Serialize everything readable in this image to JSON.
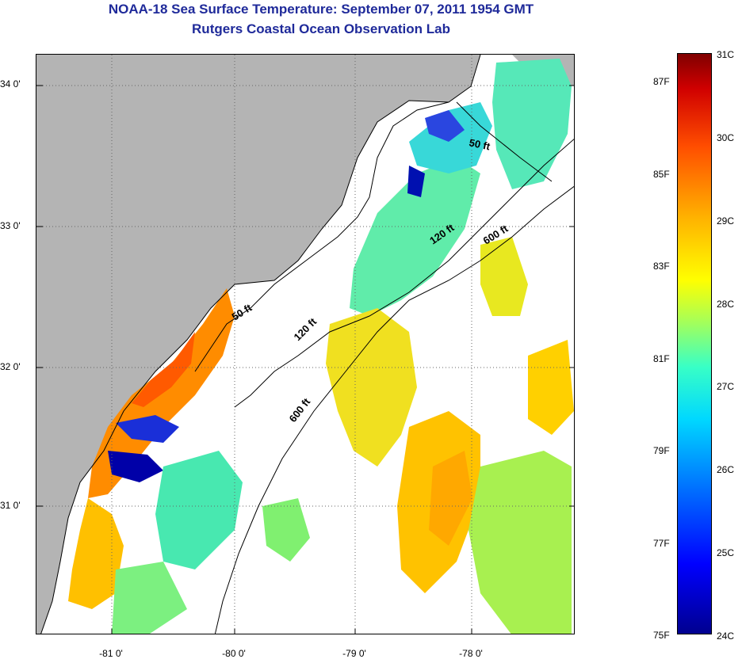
{
  "title": {
    "line1": "NOAA-18 Sea Surface Temperature:  September 07, 2011 1954 GMT",
    "line2": "Rutgers Coastal Ocean Observation Lab"
  },
  "map": {
    "lat_labels": [
      {
        "key": "lat34",
        "text": "34 0'"
      },
      {
        "key": "lat33",
        "text": "33 0'"
      },
      {
        "key": "lat32",
        "text": "32 0'"
      },
      {
        "key": "lat31",
        "text": "31 0'"
      }
    ],
    "lon_labels": [
      {
        "key": "lon81",
        "text": "-81 0'"
      },
      {
        "key": "lon80",
        "text": "-80 0'"
      },
      {
        "key": "lon79",
        "text": "-79 0'"
      },
      {
        "key": "lon78",
        "text": "-78 0'"
      }
    ],
    "contours": {
      "fifty_ft": "50 ft",
      "one_twenty_ft": "120 ft",
      "six_hundred_ft": "600 ft"
    },
    "colors": {
      "land": "#b4b4b4",
      "ocean_no_data": "#ffffff",
      "grid": "#666666"
    }
  },
  "colorbar": {
    "celsius_labels": [
      "31C",
      "30C",
      "29C",
      "28C",
      "27C",
      "26C",
      "25C",
      "24C"
    ],
    "fahrenheit_labels": [
      "87F",
      "85F",
      "83F",
      "81F",
      "79F",
      "77F",
      "75F"
    ],
    "scale_min_c": 24,
    "scale_max_c": 31
  }
}
